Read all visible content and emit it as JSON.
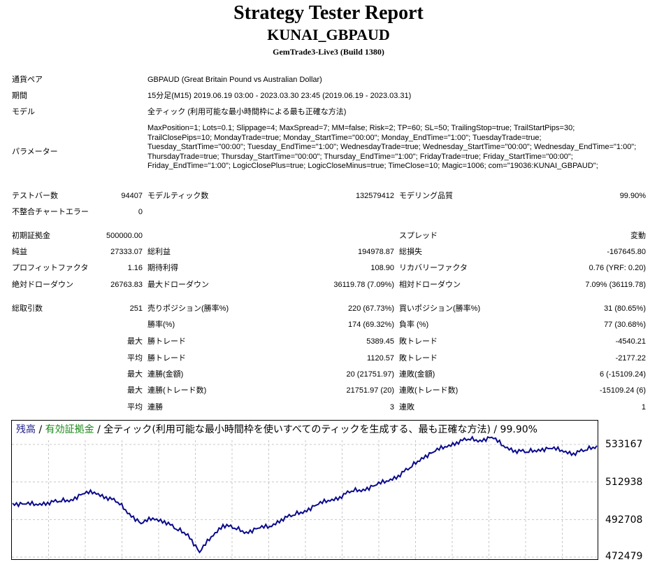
{
  "header": {
    "title": "Strategy Tester Report",
    "ea_name": "KUNAI_GBPAUD",
    "server": "GemTrade3-Live3 (Build 1380)"
  },
  "info": {
    "symbol_label": "通貨ペア",
    "symbol": "GBPAUD (Great Britain Pound vs Australian Dollar)",
    "period_label": "期間",
    "period": "15分足(M15) 2019.06.19 03:00 - 2023.03.30 23:45 (2019.06.19 - 2023.03.31)",
    "model_label": "モデル",
    "model": "全ティック (利用可能な最小時間枠による最も正確な方法)",
    "params_label": "パラメーター",
    "params": "MaxPosition=1; Lots=0.1; Slippage=4; MaxSpread=7; MM=false; Risk=2; TP=60; SL=50; TrailingStop=true; TrailStartPips=30; TrailClosePips=10; MondayTrade=true; Monday_StartTime=\"00:00\"; Monday_EndTime=\"1:00\"; TuesdayTrade=true; Tuesday_StartTime=\"00:00\"; Tuesday_EndTime=\"1:00\"; WednesdayTrade=true; Wednesday_StartTime=\"00:00\"; Wednesday_EndTime=\"1:00\"; ThursdayTrade=true; Thursday_StartTime=\"00:00\"; Thursday_EndTime=\"1:00\"; FridayTrade=true; Friday_StartTime=\"00:00\"; Friday_EndTime=\"1:00\"; LogicClosePlus=true; LogicCloseMinus=true; TimeClose=10; Magic=1006; com=\"19036:KUNAI_GBPAUD\";"
  },
  "stats": {
    "bars_label": "テストバー数",
    "bars": "94407",
    "ticks_label": "モデルティック数",
    "ticks": "132579412",
    "quality_label": "モデリング品質",
    "quality": "99.90%",
    "mismatch_label": "不整合チャートエラー",
    "mismatch": "0",
    "deposit_label": "初期証拠金",
    "deposit": "500000.00",
    "spread_label": "スプレッド",
    "spread": "変動",
    "net_label": "純益",
    "net": "27333.07",
    "gross_profit_label": "総利益",
    "gross_profit": "194978.87",
    "gross_loss_label": "総損失",
    "gross_loss": "-167645.80",
    "pf_label": "プロフィットファクタ",
    "pf": "1.16",
    "payoff_label": "期待利得",
    "payoff": "108.90",
    "rf_label": "リカバリーファクタ",
    "rf": "0.76 (YRF: 0.20)",
    "abs_dd_label": "絶対ドローダウン",
    "abs_dd": "26763.83",
    "max_dd_label": "最大ドローダウン",
    "max_dd": "36119.78 (7.09%)",
    "rel_dd_label": "相対ドローダウン",
    "rel_dd": "7.09% (36119.78)",
    "trades_label": "総取引数",
    "trades": "251",
    "short_label": "売りポジション(勝率%)",
    "short": "220 (67.73%)",
    "long_label": "買いポジション(勝率%)",
    "long": "31 (80.65%)",
    "win_rate_label": "勝率(%)",
    "win_rate": "174 (69.32%)",
    "loss_rate_label": "負率 (%)",
    "loss_rate": "77 (30.68%)",
    "max_word": "最大",
    "avg_word": "平均",
    "largest_win_label": "勝トレード",
    "largest_win": "5389.45",
    "largest_loss_label": "敗トレード",
    "largest_loss": "-4540.21",
    "avg_win_label": "勝トレード",
    "avg_win": "1120.57",
    "avg_loss_label": "敗トレード",
    "avg_loss": "-2177.22",
    "max_cons_win_label": "連勝(金額)",
    "max_cons_win": "20 (21751.97)",
    "max_cons_loss_label": "連敗(金額)",
    "max_cons_loss": "6 (-15109.24)",
    "max_cons_win_amt_label": "連勝(トレード数)",
    "max_cons_win_amt": "21751.97 (20)",
    "max_cons_loss_amt_label": "連敗(トレード数)",
    "max_cons_loss_amt": "-15109.24 (6)",
    "avg_cons_win_label": "連勝",
    "avg_cons_win": "3",
    "avg_cons_loss_label": "連敗",
    "avg_cons_loss": "1"
  },
  "chart_title": {
    "balance": "残高",
    "sep1": " / ",
    "equity": "有効証拠金",
    "rest": " / 全ティック(利用可能な最小時間枠を使いすべてのティックを生成する、最も正確な方法) / 99.90%"
  },
  "colors": {
    "balance_line": "#0a0a8c",
    "grid": "#c8c8c8",
    "equity_text": "#1a8a1a"
  },
  "chart_data": {
    "type": "line",
    "title": "",
    "xlabel": "",
    "ylabel": "",
    "yticks": [
      "533167",
      "512938",
      "492708",
      "472479"
    ],
    "yvalues": [
      533167,
      512938,
      492708,
      472479
    ],
    "ylim": [
      472479,
      544000
    ],
    "grid": true,
    "series": [
      {
        "name": "残高",
        "x": [
          0,
          5,
          10,
          15,
          20,
          25,
          30,
          35,
          40,
          45,
          50,
          55,
          60,
          65,
          70,
          75,
          80,
          85,
          90,
          95,
          100,
          105,
          110,
          115,
          120,
          125,
          130,
          135,
          140,
          145,
          150,
          155,
          160,
          165,
          170,
          175,
          180,
          185,
          190,
          195,
          200,
          205,
          210,
          215,
          220,
          225,
          230,
          235,
          240,
          245,
          250
        ],
        "values": [
          501500,
          501000,
          501000,
          502000,
          502500,
          503500,
          506500,
          507500,
          505000,
          502000,
          496000,
          490500,
          493500,
          492000,
          487500,
          485000,
          475000,
          483500,
          490000,
          488000,
          486000,
          488000,
          489000,
          493000,
          495000,
          497500,
          500500,
          503000,
          505000,
          508000,
          509000,
          511000,
          513500,
          516500,
          520500,
          526000,
          529000,
          532000,
          534500,
          536000,
          535500,
          537000,
          532500,
          530000,
          529000,
          530500,
          531000,
          530000,
          528500,
          530000,
          532500
        ]
      }
    ]
  }
}
